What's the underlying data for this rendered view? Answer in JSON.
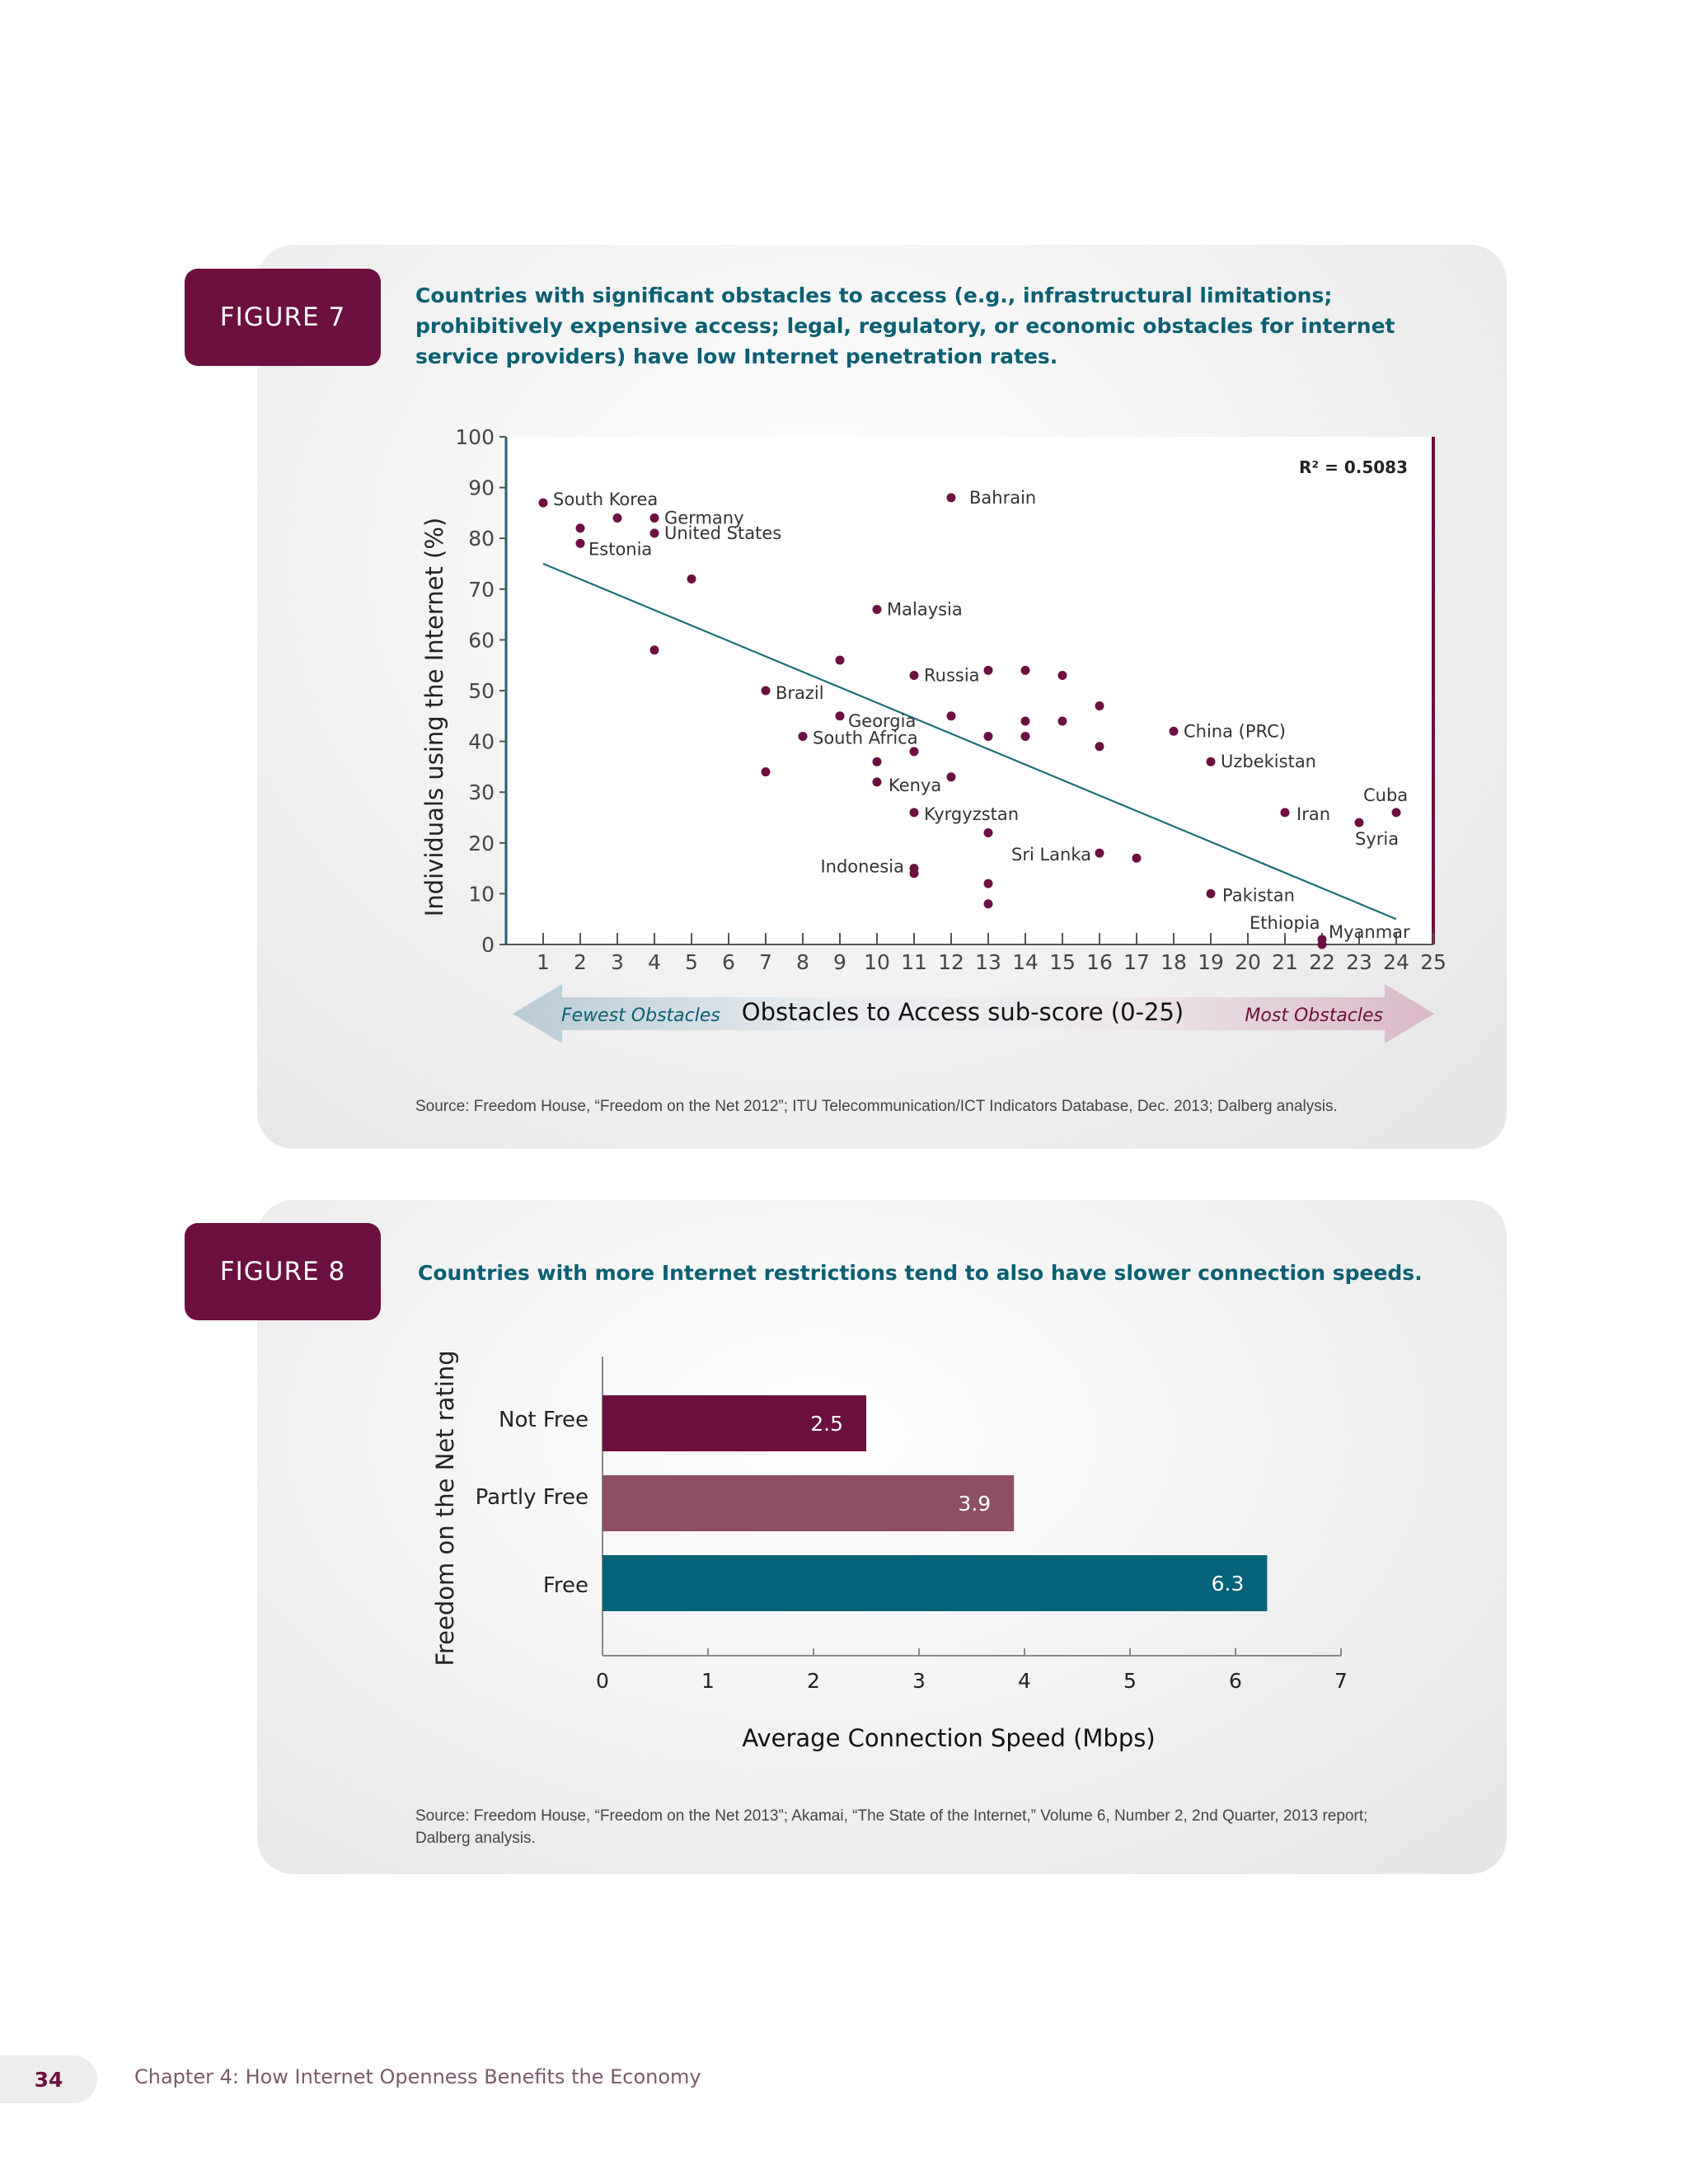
{
  "figure7": {
    "badge": "FIGURE 7",
    "caption": "Countries with significant obstacles to access (e.g., infrastructural limitations; prohibitively expensive access; legal, regulatory, or economic obstacles for internet service providers) have low Internet penetration rates.",
    "source": "Source: Freedom House, “Freedom on the Net 2012”; ITU Telecommunication/ICT Indicators Database, Dec. 2013; Dalberg analysis."
  },
  "figure8": {
    "badge": "FIGURE 8",
    "caption": "Countries with more Internet restrictions tend to also have slower connection speeds.",
    "source": "Source: Freedom House, “Freedom on the Net 2013”; Akamai, “The State of the Internet,” Volume 6, Number 2, 2nd Quarter, 2013 report; Dalberg analysis."
  },
  "footer": {
    "page_number": "34",
    "chapter": "Chapter 4: How Internet Openness Benefits the Economy"
  },
  "colors": {
    "point": "#6b1040",
    "trend": "#1f6f78",
    "not_free": "#6b1040",
    "partly_free": "#8c4f66",
    "free": "#04637a"
  },
  "chart_data": [
    {
      "type": "scatter",
      "ylabel": "Individuals using the Internet (%)",
      "xlabel": "Obstacles to Access sub-score (0-25)",
      "xlim": [
        0,
        25
      ],
      "ylim": [
        0,
        100
      ],
      "xticks": [
        1,
        2,
        3,
        4,
        5,
        6,
        7,
        8,
        9,
        10,
        11,
        12,
        13,
        14,
        15,
        16,
        17,
        18,
        19,
        20,
        21,
        22,
        23,
        24,
        25
      ],
      "yticks": [
        0,
        10,
        20,
        30,
        40,
        50,
        60,
        70,
        80,
        90,
        100
      ],
      "annotation": "R² = 0.5083",
      "arrow_left_label": "Fewest Obstacles",
      "arrow_right_label": "Most Obstacles",
      "trendline": [
        [
          1,
          75
        ],
        [
          24,
          5
        ]
      ],
      "points": [
        {
          "x": 1,
          "y": 87,
          "label": "South Korea"
        },
        {
          "x": 2,
          "y": 82
        },
        {
          "x": 2,
          "y": 79,
          "label": "Estonia"
        },
        {
          "x": 3,
          "y": 84
        },
        {
          "x": 4,
          "y": 84,
          "label": "Germany"
        },
        {
          "x": 4,
          "y": 81,
          "label": "United States"
        },
        {
          "x": 5,
          "y": 72
        },
        {
          "x": 4,
          "y": 58
        },
        {
          "x": 12,
          "y": 88,
          "label": "Bahrain"
        },
        {
          "x": 10,
          "y": 66,
          "label": "Malaysia"
        },
        {
          "x": 9,
          "y": 56
        },
        {
          "x": 11,
          "y": 53,
          "label": "Russia"
        },
        {
          "x": 7,
          "y": 50,
          "label": "Brazil"
        },
        {
          "x": 9,
          "y": 45,
          "label": "Georgia"
        },
        {
          "x": 8,
          "y": 41,
          "label": "South Africa"
        },
        {
          "x": 11,
          "y": 38
        },
        {
          "x": 10,
          "y": 36
        },
        {
          "x": 7,
          "y": 34
        },
        {
          "x": 10,
          "y": 32,
          "label": "Kenya"
        },
        {
          "x": 12,
          "y": 33
        },
        {
          "x": 11,
          "y": 26,
          "label": "Kyrgyzstan"
        },
        {
          "x": 12,
          "y": 45
        },
        {
          "x": 13,
          "y": 54
        },
        {
          "x": 14,
          "y": 54
        },
        {
          "x": 15,
          "y": 53
        },
        {
          "x": 13,
          "y": 41
        },
        {
          "x": 14,
          "y": 44
        },
        {
          "x": 14,
          "y": 41
        },
        {
          "x": 15,
          "y": 44
        },
        {
          "x": 16,
          "y": 47
        },
        {
          "x": 16,
          "y": 39
        },
        {
          "x": 13,
          "y": 22
        },
        {
          "x": 16,
          "y": 18,
          "label": "Sri Lanka"
        },
        {
          "x": 17,
          "y": 17
        },
        {
          "x": 11,
          "y": 15,
          "label": "Indonesia"
        },
        {
          "x": 11,
          "y": 14
        },
        {
          "x": 13,
          "y": 12
        },
        {
          "x": 13,
          "y": 8
        },
        {
          "x": 18,
          "y": 42,
          "label": "China (PRC)"
        },
        {
          "x": 19,
          "y": 36,
          "label": "Uzbekistan"
        },
        {
          "x": 21,
          "y": 26,
          "label": "Iran"
        },
        {
          "x": 23,
          "y": 24,
          "label": "Syria"
        },
        {
          "x": 24,
          "y": 26,
          "label": "Cuba"
        },
        {
          "x": 19,
          "y": 10,
          "label": "Pakistan"
        },
        {
          "x": 22,
          "y": 1,
          "label": "Ethiopia"
        },
        {
          "x": 22,
          "y": 0,
          "label": "Myanmar"
        }
      ]
    },
    {
      "type": "bar",
      "orientation": "horizontal",
      "ylabel": "Freedom on the Net rating",
      "xlabel": "Average Connection Speed (Mbps)",
      "xlim": [
        0,
        7
      ],
      "xticks": [
        0,
        1,
        2,
        3,
        4,
        5,
        6,
        7
      ],
      "categories": [
        "Not Free",
        "Partly Free",
        "Free"
      ],
      "values": [
        2.5,
        3.9,
        6.3
      ],
      "value_labels": [
        "2.5",
        "3.9",
        "6.3"
      ]
    }
  ]
}
